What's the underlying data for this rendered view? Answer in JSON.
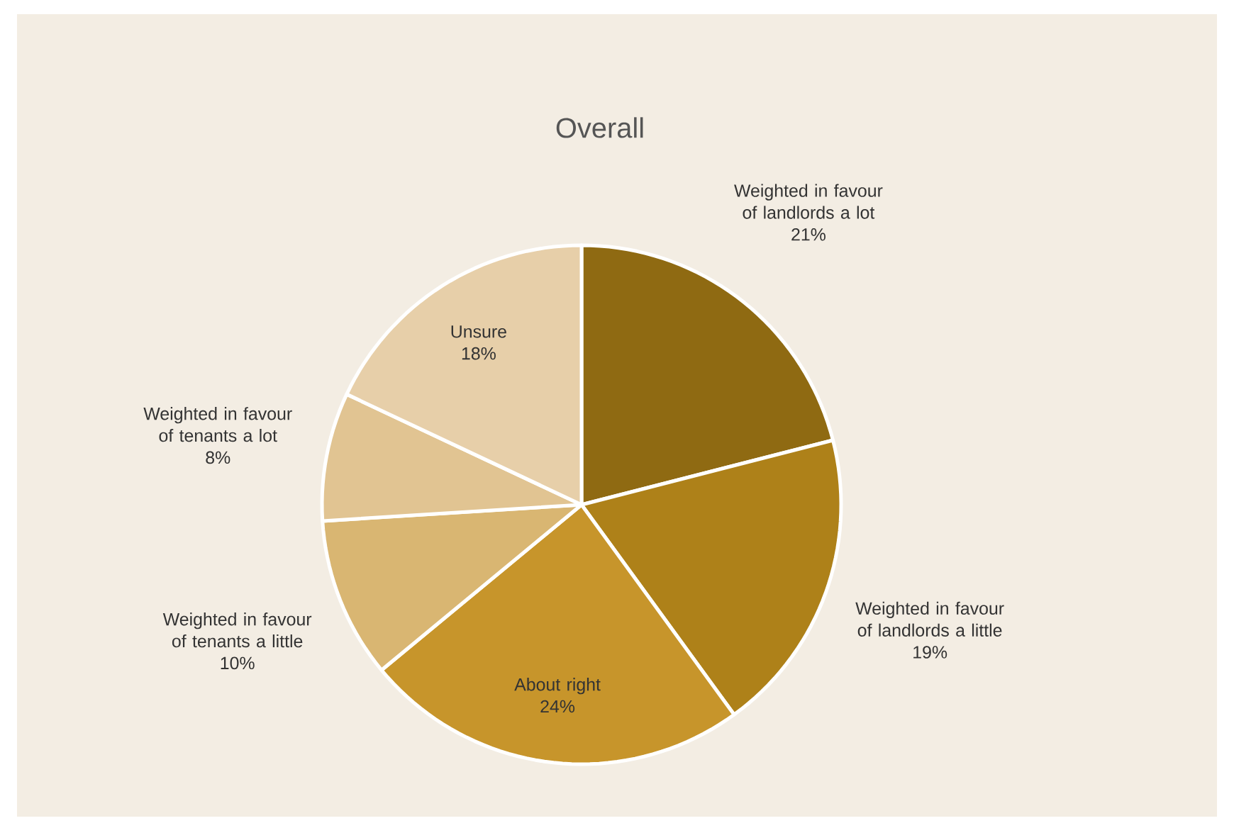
{
  "chart_data": {
    "type": "pie",
    "title": "Overall",
    "categories": [
      "Weighted in favour of landlords a lot",
      "Weighted in favour of landlords a little",
      "About right",
      "Weighted in favour of tenants a little",
      "Weighted in favour of tenants a lot",
      "Unsure"
    ],
    "values": [
      21,
      19,
      24,
      10,
      8,
      18
    ],
    "value_labels": [
      "21%",
      "19%",
      "24%",
      "10%",
      "8%",
      "18%"
    ],
    "colors": [
      "#8f6a12",
      "#ae8119",
      "#c7952b",
      "#d9b672",
      "#e1c492",
      "#e7cfa9"
    ]
  }
}
